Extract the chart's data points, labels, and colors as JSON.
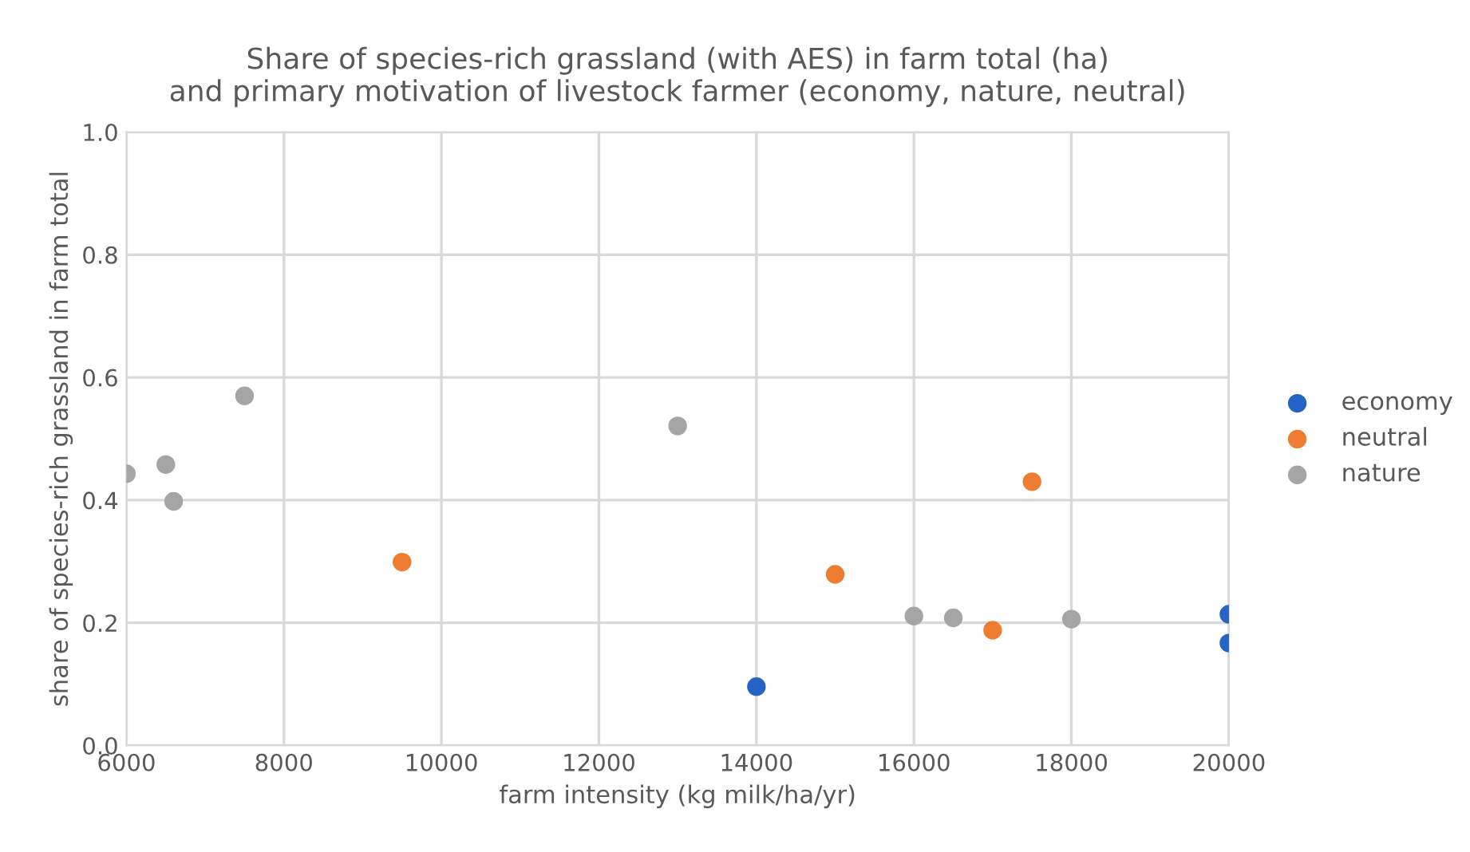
{
  "chart_data": {
    "type": "scatter",
    "title": "Share of species-rich grassland (with AES) in farm total (ha)\nand primary motivation of livestock farmer (economy, nature, neutral)",
    "xlabel": "farm intensity (kg milk/ha/yr)",
    "ylabel": "share of species-rich grassland in farm total",
    "series": [
      {
        "name": "economy",
        "color": "#2563c4",
        "x": [
          14000,
          20000,
          20000
        ],
        "values": [
          0.096,
          0.214,
          0.167
        ]
      },
      {
        "name": "neutral",
        "color": "#ed7d31",
        "x": [
          9500,
          15000,
          17000,
          17500
        ],
        "values": [
          0.299,
          0.279,
          0.188,
          0.43
        ]
      },
      {
        "name": "nature",
        "color": "#a5a5a5",
        "x": [
          6000,
          6500,
          6600,
          7500,
          13000,
          16000,
          16500,
          18000
        ],
        "values": [
          0.443,
          0.458,
          0.398,
          0.57,
          0.521,
          0.211,
          0.208,
          0.206
        ]
      }
    ],
    "xlim": [
      6000,
      20000
    ],
    "xticks": [
      6000,
      8000,
      10000,
      12000,
      14000,
      16000,
      18000,
      20000
    ],
    "ylim": [
      0,
      1
    ],
    "yticks": [
      {
        "value": 0,
        "label": "0.0"
      },
      {
        "value": 0.2,
        "label": "0.2"
      },
      {
        "value": 0.4,
        "label": "0.4"
      },
      {
        "value": 0.6,
        "label": "0.6"
      },
      {
        "value": 0.8,
        "label": "0.8"
      },
      {
        "value": 1,
        "label": "1.0"
      }
    ],
    "grid": true,
    "legend": "right",
    "marker": "circle"
  }
}
